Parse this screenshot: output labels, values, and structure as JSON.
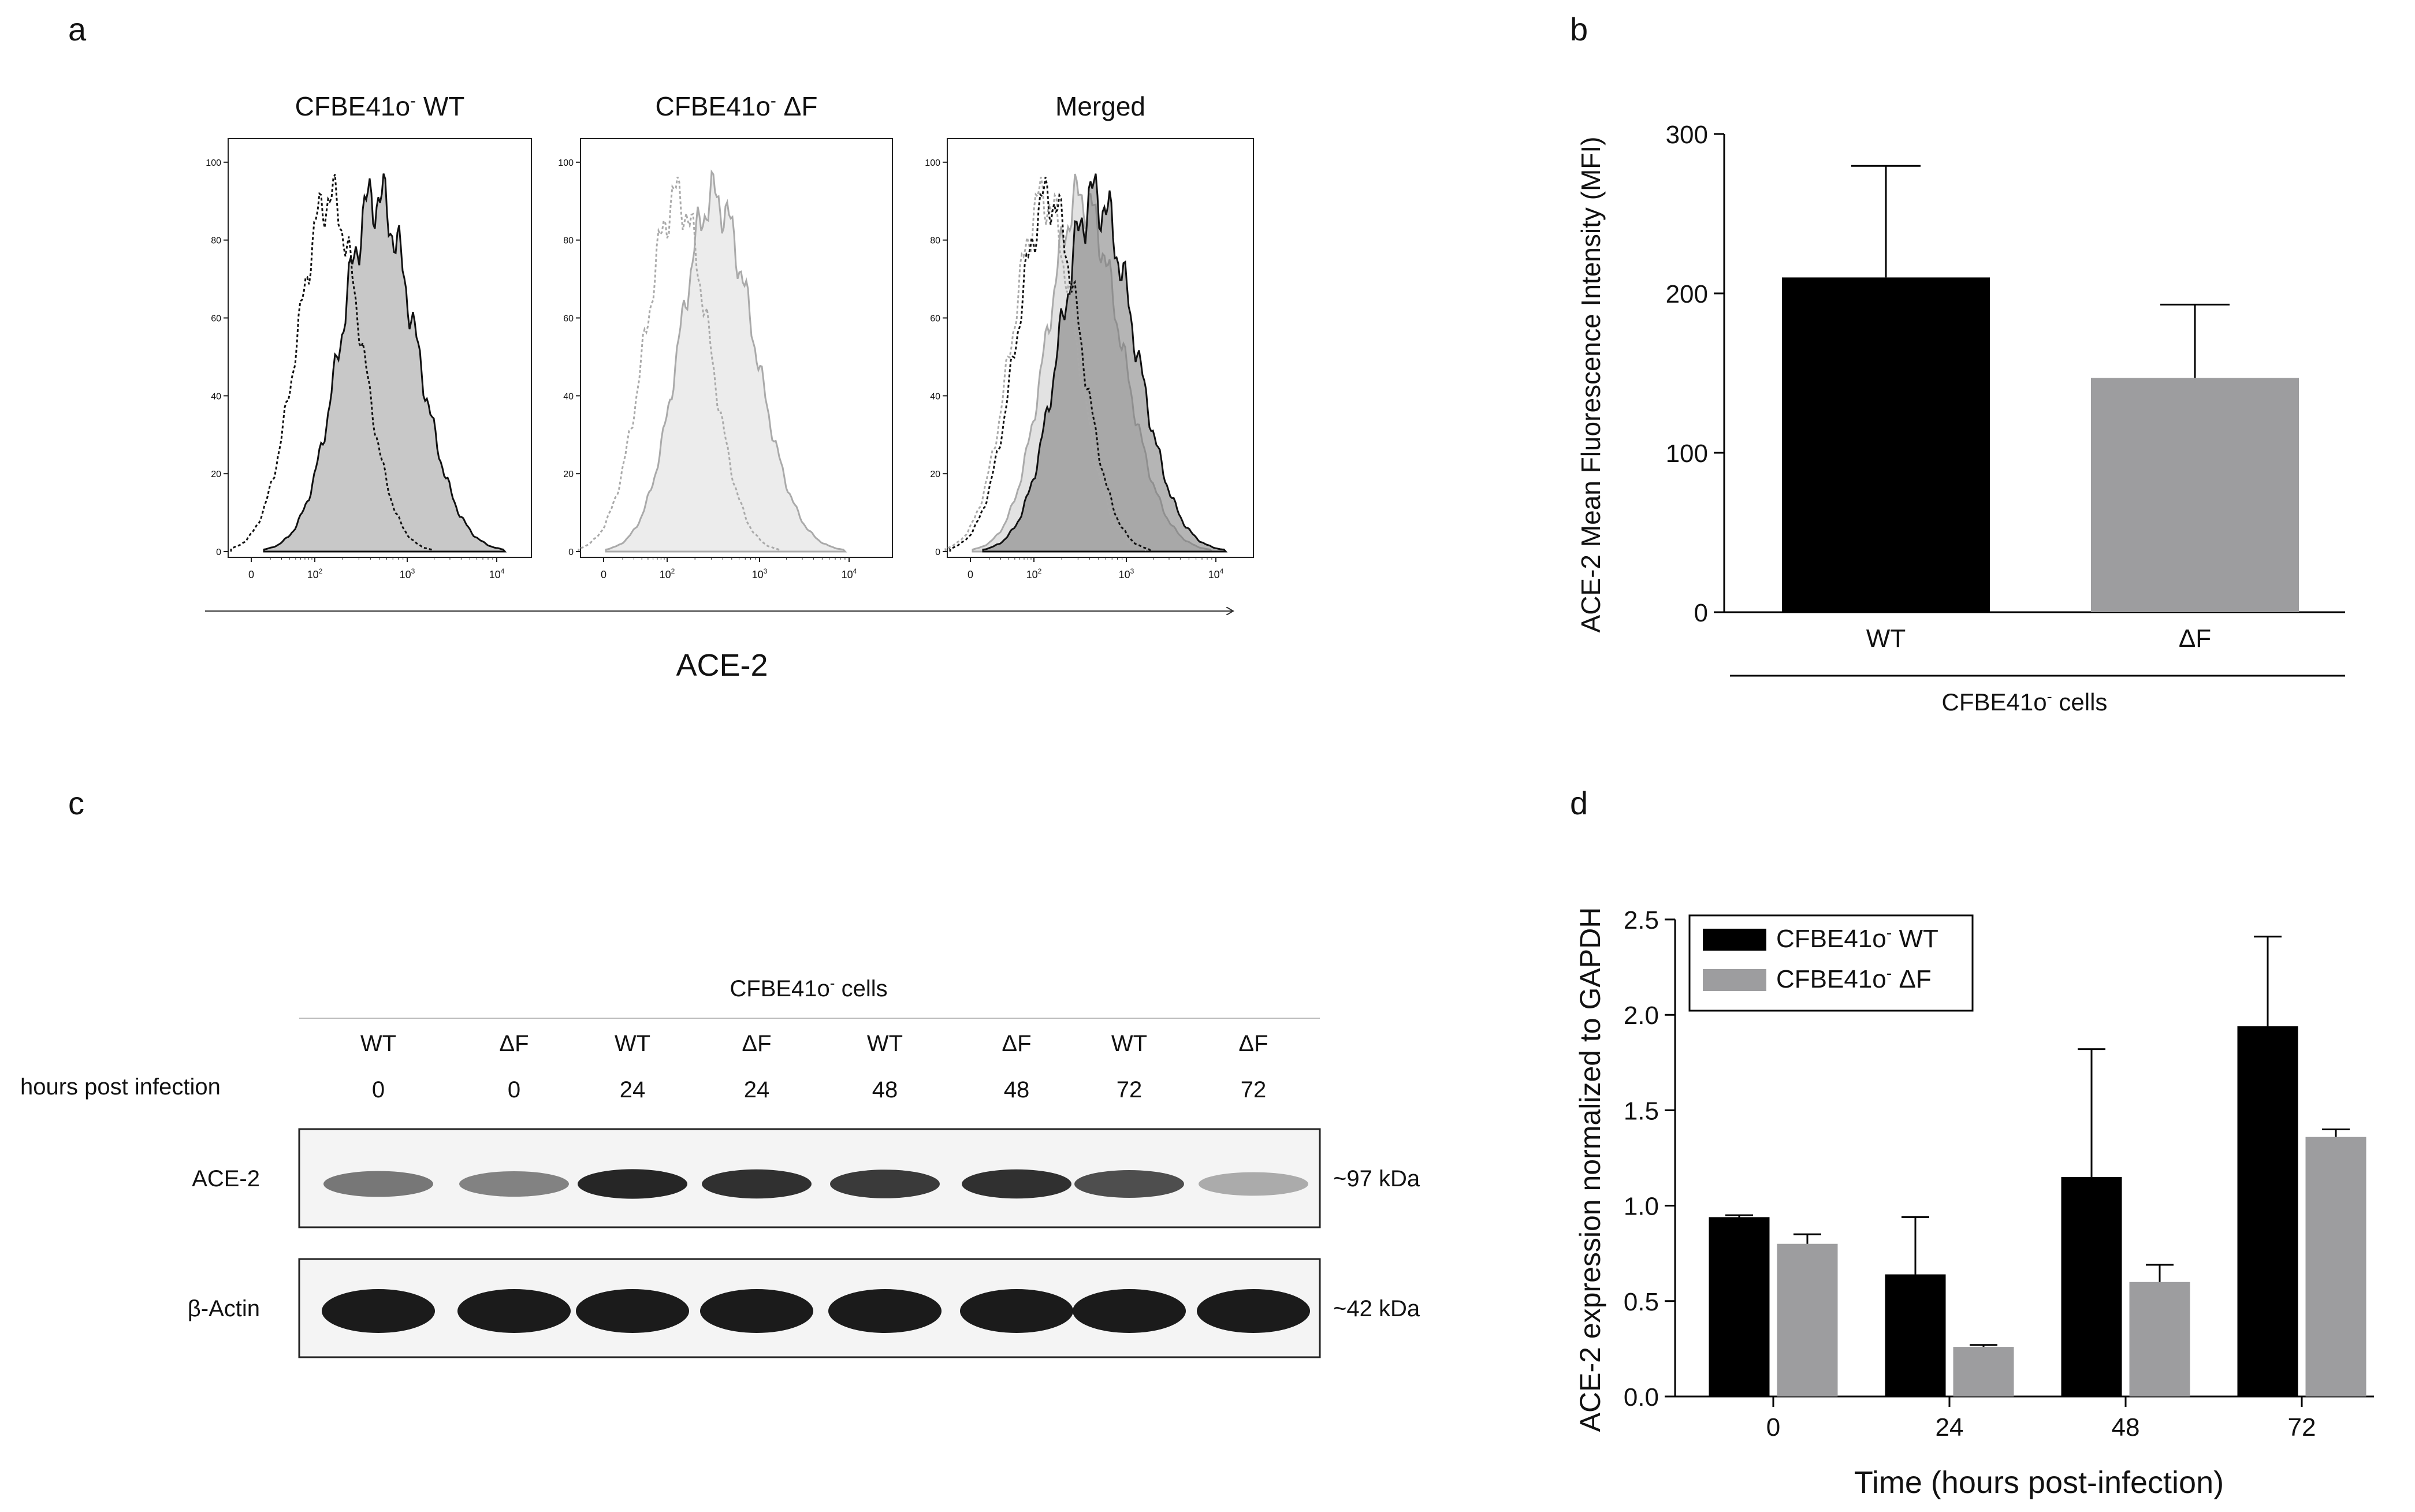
{
  "panels": {
    "a": {
      "letter": "a",
      "histograms": [
        {
          "title": "CFBE41o- WT",
          "mode": "wt"
        },
        {
          "title": "CFBE41o- ΔF",
          "mode": "df"
        },
        {
          "title": "Merged",
          "mode": "merged"
        }
      ],
      "y_ticks": [
        "0",
        "20",
        "40",
        "60",
        "80",
        "100"
      ],
      "x_ticks": [
        {
          "base": "0",
          "exp": ""
        },
        {
          "base": "10",
          "exp": "2"
        },
        {
          "base": "10",
          "exp": "3"
        },
        {
          "base": "10",
          "exp": "4"
        }
      ],
      "xlabel": "ACE-2"
    },
    "b": {
      "letter": "b"
    },
    "c": {
      "letter": "c",
      "group_label": "CFBE41o- cells",
      "row_label": "hours post infection",
      "lanes": [
        {
          "genotype": "WT",
          "hours": "0"
        },
        {
          "genotype": "ΔF",
          "hours": "0"
        },
        {
          "genotype": "WT",
          "hours": "24"
        },
        {
          "genotype": "ΔF",
          "hours": "24"
        },
        {
          "genotype": "WT",
          "hours": "48"
        },
        {
          "genotype": "ΔF",
          "hours": "48"
        },
        {
          "genotype": "WT",
          "hours": "72"
        },
        {
          "genotype": "ΔF",
          "hours": "72"
        }
      ],
      "blots": [
        {
          "protein": "ACE-2",
          "size": "~97 kDa",
          "band_intensity": [
            0.55,
            0.5,
            0.95,
            0.9,
            0.85,
            0.9,
            0.75,
            0.3
          ]
        },
        {
          "protein": "β-Actin",
          "size": "~42 kDa",
          "band_intensity": [
            1,
            1,
            1,
            1,
            1,
            1,
            1,
            1
          ]
        }
      ]
    },
    "d": {
      "letter": "d"
    }
  },
  "chart_data": [
    {
      "panel": "b",
      "type": "bar",
      "categories": [
        "WT",
        "ΔF"
      ],
      "values": [
        210,
        147
      ],
      "error": [
        70,
        46
      ],
      "colors": [
        "#000000",
        "#9d9d9f"
      ],
      "ylabel": "ACE-2 Mean Fluorescence Intensity (MFI)",
      "group_label": "CFBE41o- cells",
      "ylim": [
        0,
        300
      ],
      "yticks": [
        "0",
        "100",
        "200",
        "300"
      ]
    },
    {
      "panel": "d",
      "type": "bar",
      "categories": [
        "0",
        "24",
        "48",
        "72"
      ],
      "series": [
        {
          "name": "CFBE41o- WT",
          "values": [
            0.94,
            0.64,
            1.15,
            1.94
          ],
          "error": [
            0.01,
            0.3,
            0.67,
            0.47
          ],
          "color": "#000000"
        },
        {
          "name": "CFBE41o- ΔF",
          "values": [
            0.8,
            0.26,
            0.6,
            1.36
          ],
          "error": [
            0.05,
            0.01,
            0.09,
            0.04
          ],
          "color": "#9d9d9f"
        }
      ],
      "xlabel": "Time (hours post-infection)",
      "ylabel": "ACE-2 expression normalized to GAPDH",
      "ylim": [
        0,
        2.5
      ],
      "yticks": [
        "0.0",
        "0.5",
        "1.0",
        "1.5",
        "2.0",
        "2.5"
      ],
      "legend": "top-left"
    }
  ]
}
